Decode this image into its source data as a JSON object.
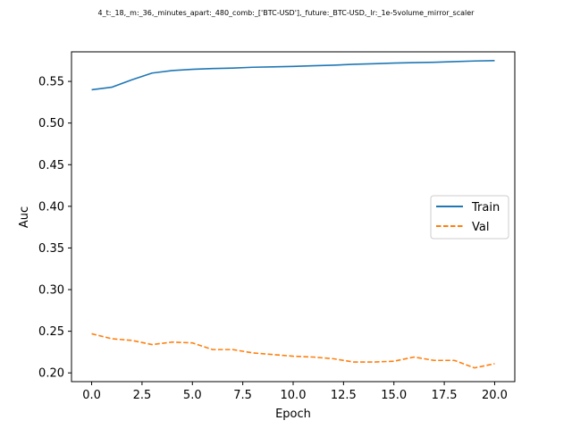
{
  "chart_data": {
    "type": "line",
    "title": "4_t:_18,_m:_36,_minutes_apart:_480_comb:_['BTC-USD'],_future:_BTC-USD,_lr:_1e-5volume_mirror_scaler",
    "xlabel": "Epoch",
    "ylabel": "Auc",
    "xlim": [
      -1,
      21
    ],
    "ylim": [
      0.1895,
      0.5855
    ],
    "xticks": [
      0.0,
      2.5,
      5.0,
      7.5,
      10.0,
      12.5,
      15.0,
      17.5,
      20.0
    ],
    "xtick_labels": [
      "0.0",
      "2.5",
      "5.0",
      "7.5",
      "10.0",
      "12.5",
      "15.0",
      "17.5",
      "20.0"
    ],
    "yticks": [
      0.2,
      0.25,
      0.3,
      0.35,
      0.4,
      0.45,
      0.5,
      0.55
    ],
    "ytick_labels": [
      "0.20",
      "0.25",
      "0.30",
      "0.35",
      "0.40",
      "0.45",
      "0.50",
      "0.55"
    ],
    "legend_position": "center-right",
    "grid": false,
    "x": [
      0,
      1,
      2,
      3,
      4,
      5,
      6,
      7,
      8,
      9,
      10,
      11,
      12,
      13,
      14,
      15,
      16,
      17,
      18,
      19,
      20
    ],
    "series": [
      {
        "name": "Train",
        "color": "#1f77b4",
        "style": "solid",
        "values": [
          0.54,
          0.543,
          0.552,
          0.56,
          0.563,
          0.5645,
          0.5655,
          0.566,
          0.567,
          0.5675,
          0.568,
          0.5688,
          0.5695,
          0.5705,
          0.5712,
          0.572,
          0.5725,
          0.573,
          0.5738,
          0.5745,
          0.575
        ]
      },
      {
        "name": "Val",
        "color": "#ff7f0e",
        "style": "dashed",
        "values": [
          0.247,
          0.241,
          0.239,
          0.234,
          0.237,
          0.236,
          0.228,
          0.228,
          0.224,
          0.222,
          0.22,
          0.219,
          0.217,
          0.213,
          0.213,
          0.214,
          0.219,
          0.215,
          0.215,
          0.206,
          0.211
        ]
      }
    ]
  }
}
